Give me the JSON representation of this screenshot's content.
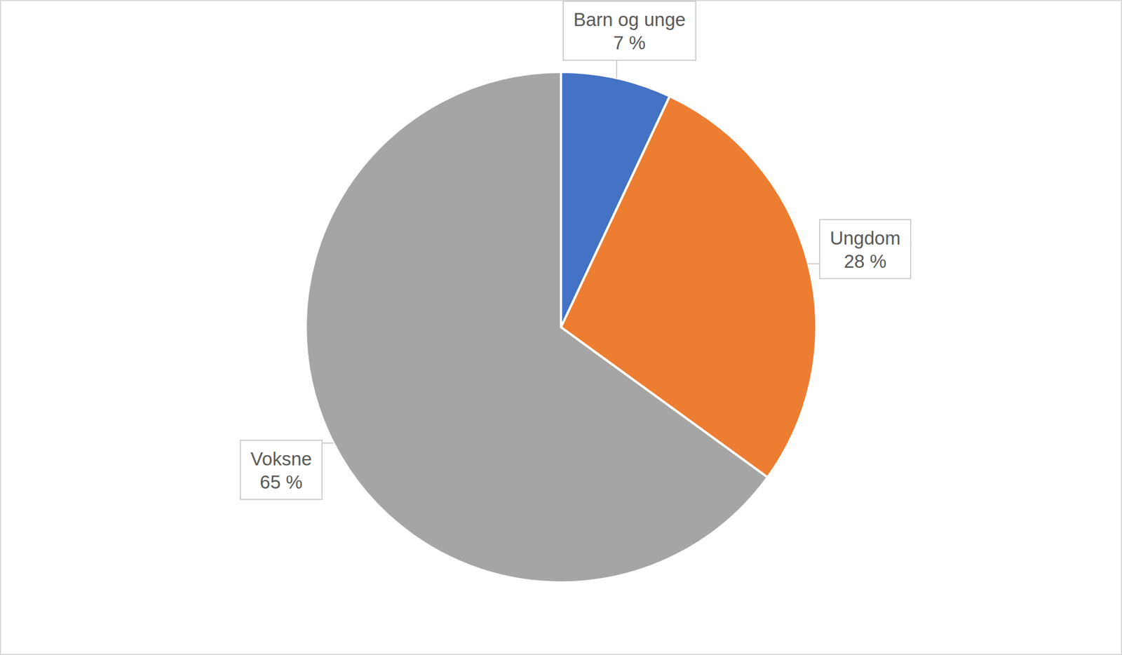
{
  "chart_data": {
    "type": "pie",
    "categories": [
      "Barn og unge",
      "Ungdom",
      "Voksne"
    ],
    "values": [
      7,
      28,
      65
    ],
    "value_labels": [
      "7 %",
      "28 %",
      "65 %"
    ],
    "colors": [
      "#4472c4",
      "#ed7d31",
      "#a5a5a5"
    ],
    "data_labels": true
  }
}
